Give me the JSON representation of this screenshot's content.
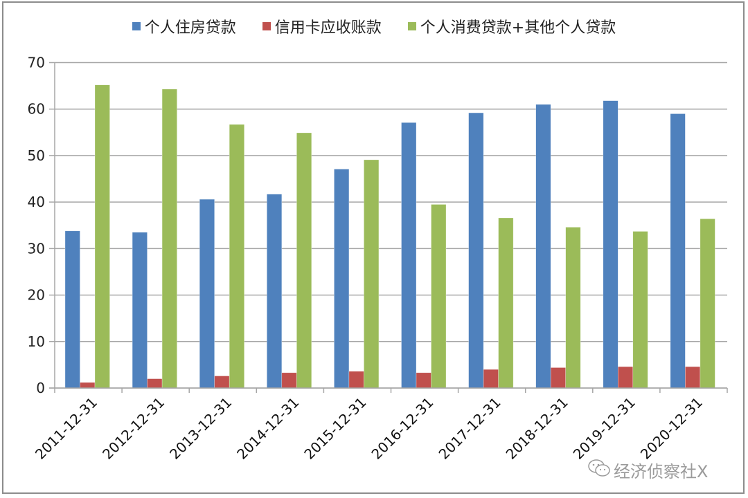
{
  "chart_data": {
    "type": "bar",
    "title": "",
    "xlabel": "",
    "ylabel": "",
    "ylim": [
      0,
      70
    ],
    "yticks": [
      0,
      10,
      20,
      30,
      40,
      50,
      60,
      70
    ],
    "grid": true,
    "legend_position": "top",
    "categories": [
      "2011-12-31",
      "2012-12-31",
      "2013-12-31",
      "2014-12-31",
      "2015-12-31",
      "2016-12-31",
      "2017-12-31",
      "2018-12-31",
      "2019-12-31",
      "2020-12-31"
    ],
    "series": [
      {
        "name": "个人住房贷款",
        "color": "#4f81bd",
        "values": [
          33.8,
          33.5,
          40.6,
          41.7,
          47.1,
          57.1,
          59.2,
          61.0,
          61.8,
          59.0
        ]
      },
      {
        "name": "信用卡应收账款",
        "color": "#c0504d",
        "values": [
          1.2,
          2.0,
          2.6,
          3.3,
          3.6,
          3.3,
          4.0,
          4.4,
          4.6,
          4.6
        ]
      },
      {
        "name": "个人消费贷款+其他个人贷款",
        "color": "#9bbb59",
        "values": [
          65.2,
          64.3,
          56.7,
          54.9,
          49.1,
          39.5,
          36.6,
          34.6,
          33.7,
          36.4
        ]
      }
    ]
  },
  "watermark": {
    "text": "经济侦察社X",
    "icon": "wechat-icon"
  }
}
